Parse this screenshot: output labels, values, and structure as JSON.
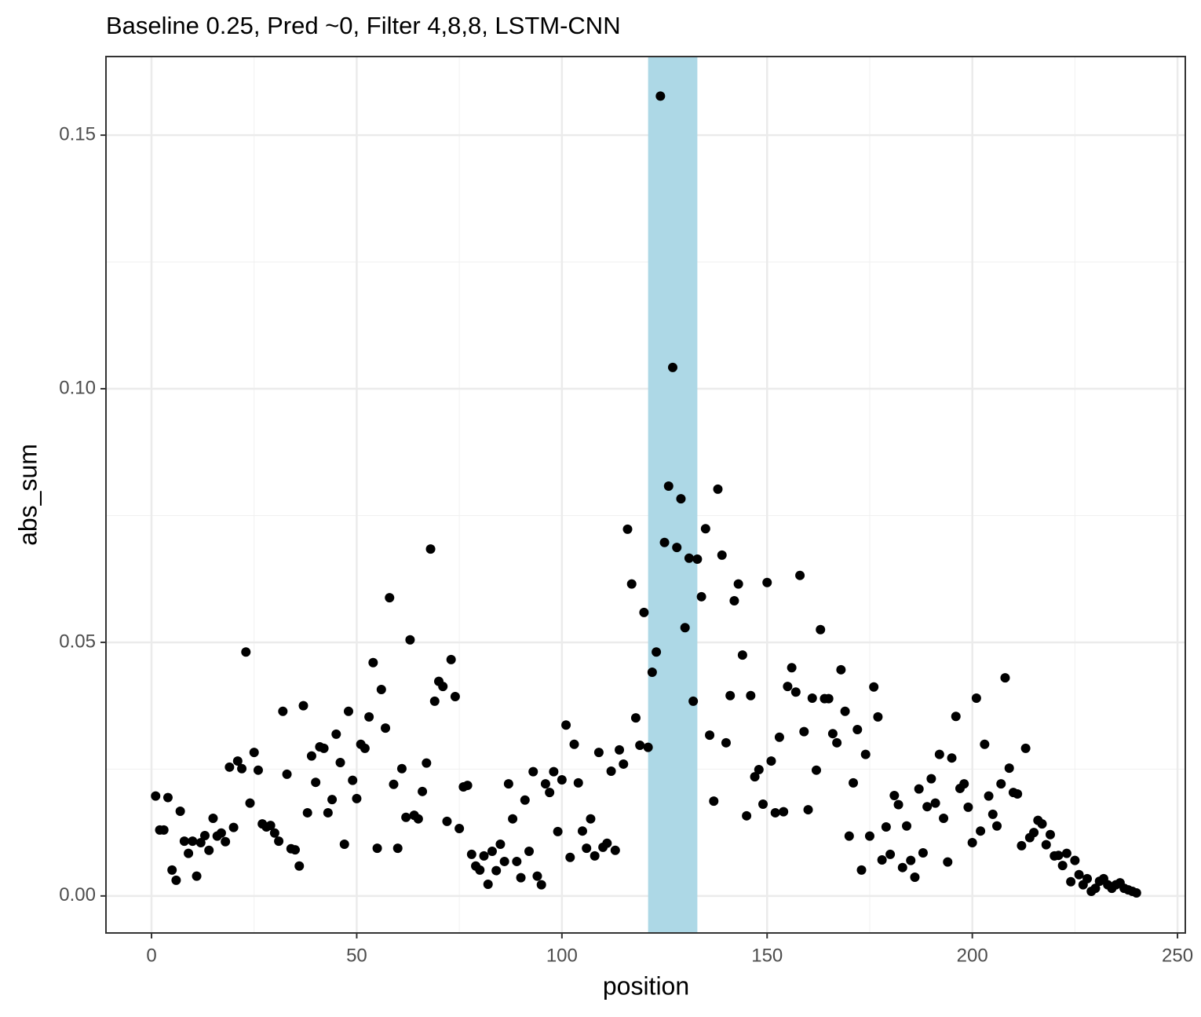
{
  "chart_data": {
    "type": "scatter",
    "title": "Baseline 0.25, Pred ~0, Filter 4,8,8, LSTM-CNN",
    "x_label": "position",
    "y_label": "abs_sum",
    "color": "#000000",
    "highlight": {
      "xmin": 121,
      "xmax": 133,
      "color": "#add8e6"
    },
    "xlim": [
      -11.1,
      251.9
    ],
    "ylim": [
      -0.0073,
      0.1655
    ],
    "xticks": [
      0,
      50,
      100,
      150,
      200,
      250
    ],
    "yticks": [
      {
        "value": 0,
        "label": "0.00"
      },
      {
        "value": 0.05,
        "label": "0.05"
      },
      {
        "value": 0.1,
        "label": "0.10"
      },
      {
        "value": 0.15,
        "label": "0.15"
      }
    ],
    "x_minor_breaks": [
      25,
      75,
      125,
      175,
      225
    ],
    "y_minor_breaks": [
      0.025,
      0.075,
      0.125
    ],
    "grid": true,
    "x": [
      1,
      2,
      3,
      4,
      5,
      6,
      7,
      8,
      9,
      10,
      11,
      12,
      13,
      14,
      15,
      16,
      17,
      18,
      19,
      20,
      21,
      22,
      23,
      24,
      25,
      26,
      27,
      28,
      29,
      30,
      31,
      32,
      33,
      34,
      35,
      36,
      37,
      38,
      39,
      40,
      41,
      42,
      43,
      44,
      45,
      46,
      47,
      48,
      49,
      50,
      51,
      52,
      53,
      54,
      55,
      56,
      57,
      58,
      59,
      60,
      61,
      62,
      63,
      64,
      65,
      66,
      67,
      68,
      69,
      70,
      71,
      72,
      73,
      74,
      75,
      76,
      77,
      78,
      79,
      80,
      81,
      82,
      83,
      84,
      85,
      86,
      87,
      88,
      89,
      90,
      91,
      92,
      93,
      94,
      95,
      96,
      97,
      98,
      99,
      100,
      101,
      102,
      103,
      104,
      105,
      106,
      107,
      108,
      109,
      110,
      111,
      112,
      113,
      114,
      115,
      116,
      117,
      118,
      119,
      120,
      121,
      122,
      123,
      124,
      125,
      126,
      127,
      128,
      129,
      130,
      131,
      132,
      133,
      134,
      135,
      136,
      137,
      138,
      139,
      140,
      141,
      142,
      143,
      144,
      145,
      146,
      147,
      148,
      149,
      150,
      151,
      152,
      153,
      154,
      155,
      156,
      157,
      158,
      159,
      160,
      161,
      162,
      163,
      164,
      165,
      166,
      167,
      168,
      169,
      170,
      171,
      172,
      173,
      174,
      175,
      176,
      177,
      178,
      179,
      180,
      181,
      182,
      183,
      184,
      185,
      186,
      187,
      188,
      189,
      190,
      191,
      192,
      193,
      194,
      195,
      196,
      197,
      198,
      199,
      200,
      201,
      202,
      203,
      204,
      205,
      206,
      207,
      208,
      209,
      210,
      211,
      212,
      213,
      214,
      215,
      216,
      217,
      218,
      219,
      220,
      221,
      222,
      223,
      224,
      225,
      226,
      227,
      228,
      229,
      230,
      231,
      232,
      233,
      234,
      235,
      236,
      237,
      238,
      239,
      240
    ],
    "values": [
      0.0197,
      0.013,
      0.013,
      0.0194,
      0.0051,
      0.0031,
      0.0167,
      0.0108,
      0.0084,
      0.0108,
      0.0039,
      0.0105,
      0.0119,
      0.009,
      0.0153,
      0.0118,
      0.0124,
      0.0107,
      0.0254,
      0.0135,
      0.0266,
      0.0251,
      0.0481,
      0.0183,
      0.0283,
      0.0248,
      0.0142,
      0.0136,
      0.0139,
      0.0124,
      0.0108,
      0.0364,
      0.024,
      0.0093,
      0.0091,
      0.0059,
      0.0375,
      0.0164,
      0.0276,
      0.0224,
      0.0294,
      0.0291,
      0.0164,
      0.019,
      0.0319,
      0.0263,
      0.0102,
      0.0364,
      0.0228,
      0.0192,
      0.0299,
      0.0291,
      0.0353,
      0.046,
      0.0094,
      0.0407,
      0.0331,
      0.0588,
      0.022,
      0.0094,
      0.0251,
      0.0155,
      0.0505,
      0.0159,
      0.0152,
      0.0206,
      0.0262,
      0.0684,
      0.0384,
      0.0423,
      0.0413,
      0.0147,
      0.0466,
      0.0393,
      0.0133,
      0.0215,
      0.0218,
      0.0082,
      0.0059,
      0.0051,
      0.0079,
      0.0023,
      0.0088,
      0.005,
      0.0102,
      0.0068,
      0.0221,
      0.0152,
      0.0068,
      0.0036,
      0.0189,
      0.0088,
      0.0245,
      0.0039,
      0.0022,
      0.0221,
      0.0204,
      0.0245,
      0.0127,
      0.0229,
      0.0337,
      0.0076,
      0.0299,
      0.0223,
      0.0128,
      0.0094,
      0.0152,
      0.0079,
      0.0283,
      0.0096,
      0.0104,
      0.0246,
      0.009,
      0.0288,
      0.026,
      0.0723,
      0.0615,
      0.0351,
      0.0297,
      0.0559,
      0.0293,
      0.0441,
      0.0481,
      0.1577,
      0.0697,
      0.0808,
      0.1042,
      0.0687,
      0.0783,
      0.0529,
      0.0666,
      0.0384,
      0.0664,
      0.059,
      0.0724,
      0.0317,
      0.0187,
      0.0802,
      0.0672,
      0.0302,
      0.0395,
      0.0582,
      0.0615,
      0.0475,
      0.0158,
      0.0395,
      0.0235,
      0.0249,
      0.0181,
      0.0618,
      0.0266,
      0.0164,
      0.0313,
      0.0166,
      0.0413,
      0.045,
      0.0402,
      0.0632,
      0.0324,
      0.017,
      0.039,
      0.0248,
      0.0525,
      0.0389,
      0.0389,
      0.032,
      0.0302,
      0.0446,
      0.0364,
      0.0118,
      0.0223,
      0.0328,
      0.0051,
      0.0279,
      0.0118,
      0.0412,
      0.0353,
      0.0071,
      0.0136,
      0.0082,
      0.0198,
      0.018,
      0.0056,
      0.0138,
      0.007,
      0.0037,
      0.0211,
      0.0085,
      0.0176,
      0.0231,
      0.0183,
      0.0279,
      0.0153,
      0.0067,
      0.0272,
      0.0354,
      0.0212,
      0.0221,
      0.0175,
      0.0105,
      0.039,
      0.0128,
      0.0299,
      0.0197,
      0.0161,
      0.0138,
      0.0221,
      0.043,
      0.0252,
      0.0204,
      0.0201,
      0.0099,
      0.0291,
      0.0115,
      0.0125,
      0.0149,
      0.0142,
      0.0101,
      0.0121,
      0.0079,
      0.008,
      0.006,
      0.0084,
      0.0028,
      0.007,
      0.0042,
      0.0022,
      0.0034,
      0.0009,
      0.0015,
      0.0029,
      0.0034,
      0.0022,
      0.0015,
      0.0022,
      0.0026,
      0.0015,
      0.0012,
      0.0009,
      0.0006
    ]
  }
}
